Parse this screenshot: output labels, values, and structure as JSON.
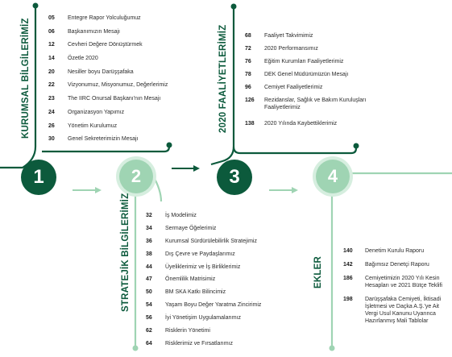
{
  "colors": {
    "dark_green": "#0c5a3c",
    "light_green": "#9fd4b3",
    "text": "#2b2b2b"
  },
  "sections": [
    {
      "number": "1",
      "title": "KURUMSAL BİLGİLERİMİZ",
      "items": [
        {
          "page": "05",
          "text": "Entegre Rapor Yolculuğumuz"
        },
        {
          "page": "06",
          "text": "Başkanımızın Mesajı"
        },
        {
          "page": "12",
          "text": "Cevheri Değere Dönüştürmek"
        },
        {
          "page": "14",
          "text": "Özetle 2020"
        },
        {
          "page": "20",
          "text": "Nesiller boyu Darüşşafaka"
        },
        {
          "page": "22",
          "text": "Vizyonumuz, Misyonumuz, Değerlerimiz"
        },
        {
          "page": "23",
          "text": "The IIRC Onursal Başkanı'nın Mesajı"
        },
        {
          "page": "24",
          "text": "Organizasyon Yapımız"
        },
        {
          "page": "26",
          "text": "Yönetim Kurulumuz"
        },
        {
          "page": "30",
          "text": "Genel Sekreterimizin Mesajı"
        }
      ]
    },
    {
      "number": "2",
      "title": "STRATEJİK BİLGİLERİMİZ",
      "items": [
        {
          "page": "32",
          "text": "İş Modelimiz"
        },
        {
          "page": "34",
          "text": "Sermaye Öğelerimiz"
        },
        {
          "page": "36",
          "text": "Kurumsal Sürdürülebilirlik Stratejimiz"
        },
        {
          "page": "38",
          "text": "Dış Çevre ve Paydaşlarımız"
        },
        {
          "page": "44",
          "text": "Üyeliklerimiz ve İş Birliklerimiz"
        },
        {
          "page": "47",
          "text": "Önemlilik Matrisimiz"
        },
        {
          "page": "50",
          "text": "BM SKA Katkı Bilincimiz"
        },
        {
          "page": "54",
          "text": "Yaşam Boyu Değer Yaratma Zincirimiz"
        },
        {
          "page": "56",
          "text": "İyi Yönetişim Uygulamalarımız"
        },
        {
          "page": "62",
          "text": "Risklerin Yönetimi"
        },
        {
          "page": "64",
          "text": "Risklerimiz ve Fırsatlarımız"
        }
      ]
    },
    {
      "number": "3",
      "title": "2020 FAALİYETLERİMİZ",
      "items": [
        {
          "page": "68",
          "text": "Faaliyet Takvimimiz"
        },
        {
          "page": "72",
          "text": "2020 Performansımız"
        },
        {
          "page": "76",
          "text": "Eğitim Kurumları Faaliyetlerimiz"
        },
        {
          "page": "78",
          "text": "DEK Genel Müdürümüzün Mesajı"
        },
        {
          "page": "96",
          "text": "Cemiyet Faaliyetlerimiz"
        },
        {
          "page": "126",
          "text": "Rezidanslar, Sağlık ve Bakım Kuruluşları Faaliyetlerimiz"
        },
        {
          "page": "138",
          "text": "2020 Yılında Kaybettiklerimiz"
        }
      ]
    },
    {
      "number": "4",
      "title": "EKLER",
      "items": [
        {
          "page": "140",
          "text": "Denetim Kurulu Raporu"
        },
        {
          "page": "142",
          "text": "Bağımsız Denetçi Raporu"
        },
        {
          "page": "186",
          "text": "Cemiyetimizin 2020 Yılı Kesin Hesapları ve 2021 Bütçe Teklifi"
        },
        {
          "page": "198",
          "text": "Darüşşafaka Cemiyeti, İktisadi İşletmesi ve Daçka A.Ş.'ye Ait Vergi Usul Kanunu Uyarınca Hazırlanmış Mali Tablolar"
        }
      ]
    }
  ]
}
